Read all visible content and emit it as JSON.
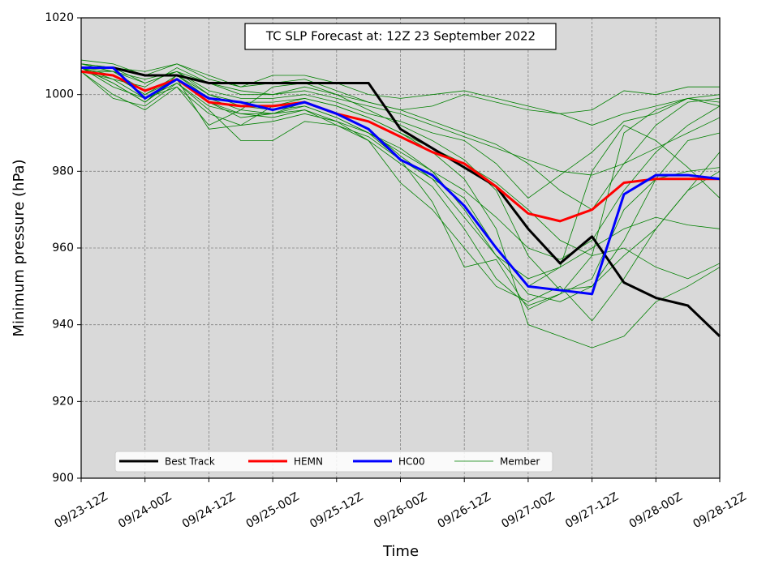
{
  "chart_data": {
    "type": "line",
    "title": "TC SLP Forecast at: 12Z 23 September 2022",
    "x_label": "Time",
    "y_label": "Minimum pressure (hPa)",
    "categories": [
      "09/23-12Z",
      null,
      "09/24-00Z",
      null,
      "09/24-12Z",
      null,
      "09/25-00Z",
      null,
      "09/25-12Z",
      null,
      "09/26-00Z",
      null,
      "09/26-12Z",
      null,
      "09/27-00Z",
      null,
      "09/27-12Z",
      null,
      "09/28-00Z",
      null,
      "09/28-12Z"
    ],
    "ylim": [
      900,
      1020
    ],
    "yticks": [
      900,
      920,
      940,
      960,
      980,
      1000,
      1020
    ],
    "grid": true,
    "legend": "lower left",
    "series": [
      {
        "name": "Best Track",
        "color": "#000000",
        "values": [
          1007,
          1007,
          1005,
          1005,
          1003,
          1003,
          1003,
          1003,
          1003,
          1003,
          991,
          986,
          981,
          976,
          965,
          956,
          963,
          951,
          947,
          945,
          937
        ]
      },
      {
        "name": "HEMN",
        "color": "#ff0000",
        "values": [
          1006,
          1005,
          1001,
          1004,
          998,
          997,
          997,
          998,
          995,
          993,
          989,
          985,
          982,
          976,
          969,
          967,
          970,
          977,
          978,
          978,
          978
        ]
      },
      {
        "name": "HC00",
        "color": "#0000ff",
        "values": [
          1007,
          1007,
          999,
          1004,
          999,
          998,
          996,
          998,
          995,
          991,
          983,
          979,
          971,
          960,
          950,
          949,
          948,
          974,
          979,
          979,
          978
        ]
      }
    ],
    "members": {
      "name": "Member",
      "color": "#008000",
      "values": [
        [
          1008,
          1007,
          1003,
          1006,
          1003,
          1000,
          1000,
          1001,
          999,
          997,
          995,
          992,
          989,
          986,
          983,
          980,
          979,
          982,
          986,
          990,
          994
        ],
        [
          1007,
          1003,
          998,
          1005,
          1000,
          997,
          996,
          997,
          994,
          990,
          985,
          980,
          975,
          968,
          960,
          957,
          962,
          975,
          985,
          992,
          997
        ],
        [
          1006,
          1000,
          996,
          1002,
          995,
          992,
          993,
          995,
          993,
          990,
          986,
          980,
          970,
          958,
          948,
          946,
          950,
          958,
          965,
          975,
          980
        ],
        [
          1009,
          1008,
          1005,
          1008,
          1005,
          1002,
          1003,
          1004,
          1001,
          998,
          996,
          997,
          1000,
          998,
          996,
          995,
          996,
          1001,
          1000,
          1002,
          1002
        ],
        [
          1007,
          1005,
          1000,
          1004,
          998,
          994,
          995,
          996,
          992,
          988,
          982,
          976,
          965,
          952,
          945,
          948,
          952,
          970,
          978,
          980,
          981
        ],
        [
          1006,
          1004,
          1002,
          1007,
          1003,
          1001,
          1000,
          1002,
          1000,
          998,
          996,
          993,
          990,
          987,
          982,
          975,
          970,
          982,
          992,
          998,
          999
        ],
        [
          1007,
          1006,
          1001,
          1004,
          991,
          992,
          997,
          999,
          997,
          994,
          990,
          985,
          978,
          965,
          940,
          937,
          934,
          937,
          946,
          950,
          955
        ],
        [
          1006,
          999,
          997,
          1003,
          996,
          988,
          988,
          993,
          992,
          989,
          983,
          972,
          955,
          957,
          944,
          948,
          958,
          990,
          996,
          999,
          998
        ],
        [
          1008,
          1006,
          1003,
          1006,
          1001,
          999,
          999,
          1000,
          998,
          995,
          993,
          990,
          988,
          982,
          973,
          979,
          985,
          993,
          995,
          999,
          997
        ],
        [
          1007,
          1002,
          999,
          1003,
          997,
          995,
          994,
          996,
          993,
          988,
          977,
          970,
          960,
          950,
          946,
          950,
          941,
          952,
          965,
          975,
          985
        ],
        [
          1006,
          1006,
          1004,
          1006,
          1000,
          998,
          998,
          999,
          997,
          994,
          990,
          986,
          982,
          977,
          970,
          962,
          958,
          960,
          955,
          952,
          956
        ],
        [
          1008,
          1007,
          1006,
          1008,
          1004,
          1002,
          1005,
          1005,
          1003,
          1000,
          999,
          1000,
          1001,
          999,
          997,
          995,
          992,
          995,
          997,
          999,
          1000
        ],
        [
          1007,
          1004,
          999,
          1002,
          992,
          996,
          1002,
          1003,
          1000,
          996,
          992,
          988,
          983,
          975,
          958,
          949,
          950,
          962,
          978,
          988,
          990
        ],
        [
          1006,
          1005,
          1000,
          1005,
          999,
          996,
          995,
          997,
          994,
          990,
          983,
          978,
          973,
          960,
          950,
          955,
          960,
          965,
          968,
          966,
          965
        ],
        [
          1007,
          1003,
          998,
          1004,
          998,
          995,
          995,
          998,
          995,
          991,
          984,
          978,
          968,
          958,
          952,
          955,
          980,
          992,
          988,
          981,
          973
        ]
      ]
    }
  }
}
